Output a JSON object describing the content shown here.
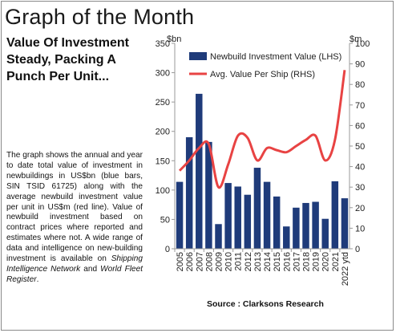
{
  "header": {
    "title": "Graph of the Month"
  },
  "article": {
    "headline": "Value Of Investment Steady, Packing A Punch Per Unit...",
    "body_part1": "The graph shows the annual and year to date total value of investment in newbuildings in US$bn (blue bars, SIN TSID 61725) along with the average newbuild investment value per unit in US$m (red line). Value of newbuild investment based on contract prices where reported and estimates where not. A wide range of data and intelligence on new-building investment is available on ",
    "link1": "Shipping Intelligence Network",
    "body_part2": " and ",
    "link2": "World Fleet Register",
    "body_part3": "."
  },
  "source": "Source : Clarksons Research",
  "chart_data": {
    "type": "bar",
    "categories": [
      "2005",
      "2006",
      "2007",
      "2008",
      "2009",
      "2010",
      "2011",
      "2012",
      "2013",
      "2014",
      "2015",
      "2016",
      "2017",
      "2018",
      "2019",
      "2020",
      "2021",
      "2022 ytd"
    ],
    "left_unit": "$bn",
    "right_unit": "$m",
    "ylim_left": [
      0,
      350
    ],
    "ylim_right": [
      0,
      100
    ],
    "yticks_left": [
      0,
      50,
      100,
      150,
      200,
      250,
      300,
      350
    ],
    "yticks_right": [
      0,
      10,
      20,
      30,
      40,
      50,
      60,
      70,
      80,
      90,
      100
    ],
    "legend_placement": "top",
    "grid": false,
    "series": [
      {
        "name": "Newbuild Investment Value (LHS)",
        "type": "bar",
        "axis": "left",
        "color": "#1f3b7a",
        "values": [
          114,
          190,
          264,
          182,
          42,
          112,
          106,
          92,
          138,
          114,
          89,
          38,
          70,
          78,
          80,
          51,
          115,
          86
        ]
      },
      {
        "name": "Avg. Value Per Ship (RHS)",
        "type": "line",
        "axis": "right",
        "color": "#e84343",
        "values": [
          38,
          43,
          49,
          51,
          30,
          41,
          55,
          54,
          43,
          49,
          48,
          47,
          50,
          53,
          55,
          43,
          53,
          87
        ]
      }
    ]
  }
}
